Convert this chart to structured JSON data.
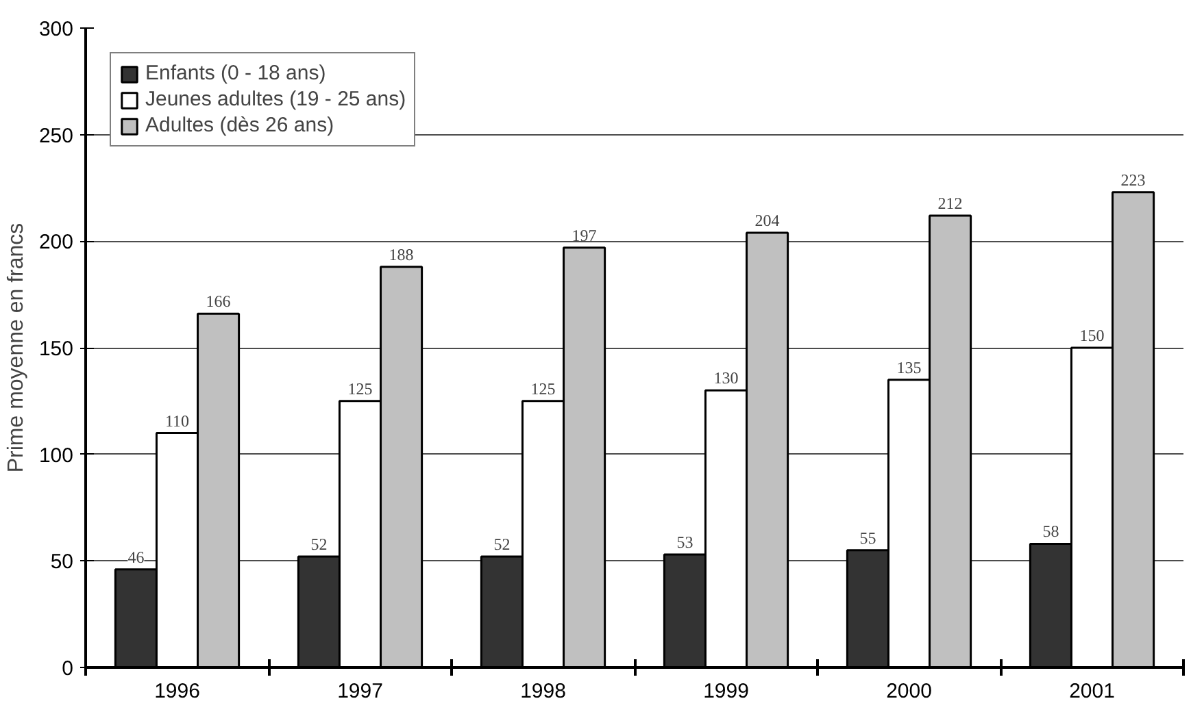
{
  "chart_data": {
    "type": "bar",
    "ylabel": "Prime moyenne en francs",
    "categories": [
      "1996",
      "1997",
      "1998",
      "1999",
      "2000",
      "2001"
    ],
    "series": [
      {
        "name": "Enfants (0 - 18 ans)",
        "color": "#333333",
        "values": [
          46,
          52,
          52,
          53,
          55,
          58
        ]
      },
      {
        "name": "Jeunes adultes (19 - 25 ans)",
        "color": "#ffffff",
        "values": [
          110,
          125,
          125,
          130,
          135,
          150
        ]
      },
      {
        "name": "Adultes (dès 26 ans)",
        "color": "#c0c0c0",
        "values": [
          166,
          188,
          197,
          204,
          212,
          223
        ]
      }
    ],
    "ylim": [
      0,
      300
    ],
    "yticks": [
      0,
      50,
      100,
      150,
      200,
      250,
      300
    ],
    "grid": "y",
    "legend": "top left",
    "data_labels": true
  }
}
